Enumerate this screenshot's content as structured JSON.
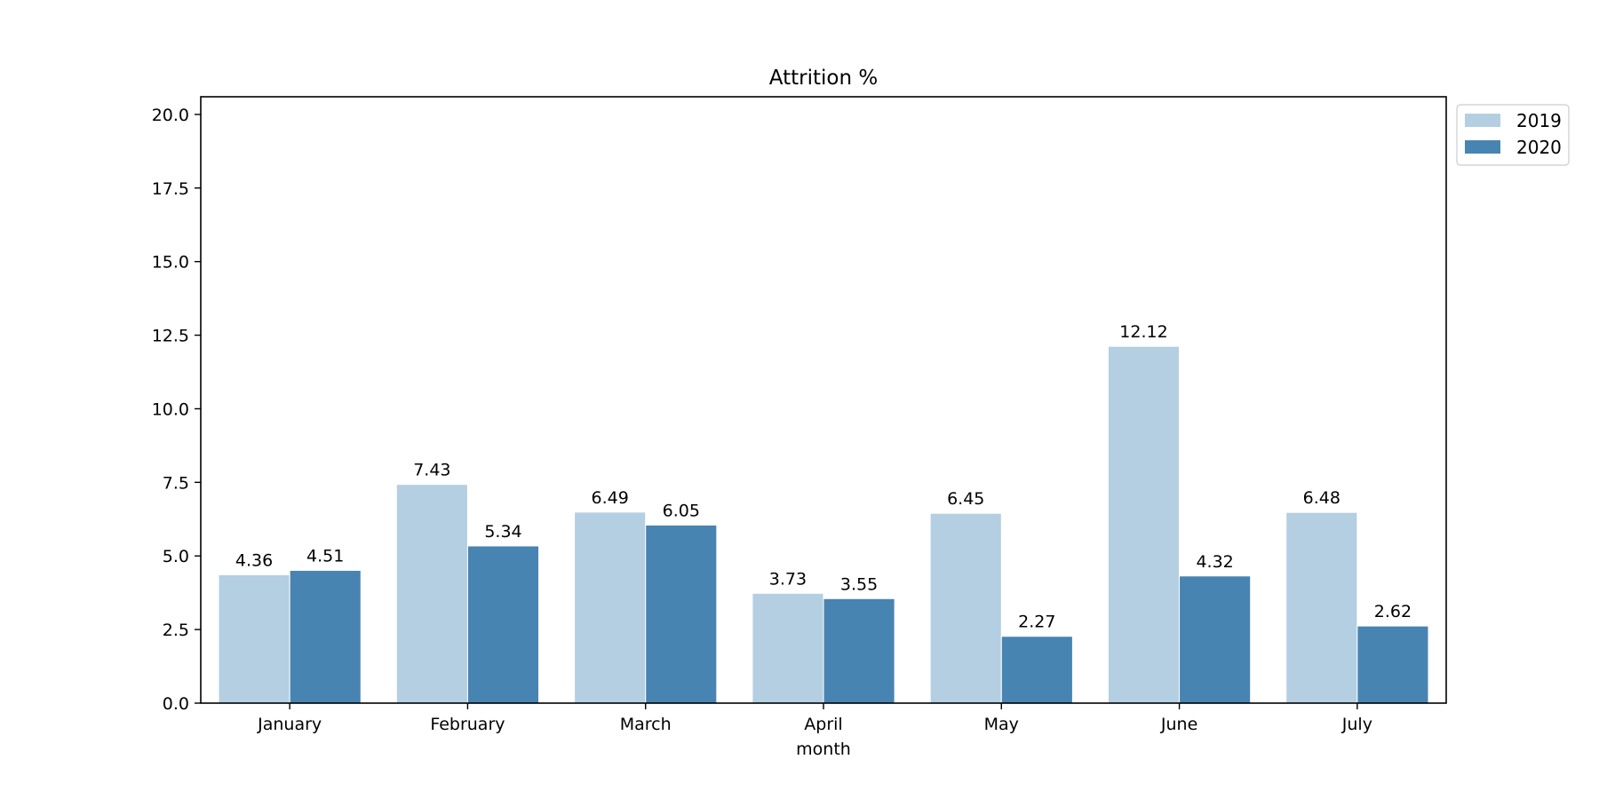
{
  "chart_data": {
    "type": "bar",
    "title": "Attrition %",
    "xlabel": "month",
    "ylabel": "",
    "categories": [
      "January",
      "February",
      "March",
      "April",
      "May",
      "June",
      "July"
    ],
    "series": [
      {
        "name": "2019",
        "color": "#b3cfe1",
        "values": [
          4.36,
          7.43,
          6.49,
          3.73,
          6.45,
          12.12,
          6.48
        ]
      },
      {
        "name": "2020",
        "color": "#4884b2",
        "values": [
          4.51,
          5.34,
          6.05,
          3.55,
          2.27,
          4.32,
          2.62
        ]
      }
    ],
    "data_labels": {
      "2019": [
        "4.36",
        "7.43",
        "6.49",
        "3.73",
        "6.45",
        "12.12",
        "6.48"
      ],
      "2020": [
        "4.51",
        "5.34",
        "6.05",
        "3.55",
        "2.27",
        "4.32",
        "2.62"
      ]
    },
    "ylim": [
      0,
      20.6
    ],
    "yticks": [
      0.0,
      2.5,
      5.0,
      7.5,
      10.0,
      12.5,
      15.0,
      17.5,
      20.0
    ],
    "ytick_labels": [
      "0.0",
      "2.5",
      "5.0",
      "7.5",
      "10.0",
      "12.5",
      "15.0",
      "17.5",
      "20.0"
    ],
    "grid": false,
    "legend_position": "outside-top-right"
  }
}
